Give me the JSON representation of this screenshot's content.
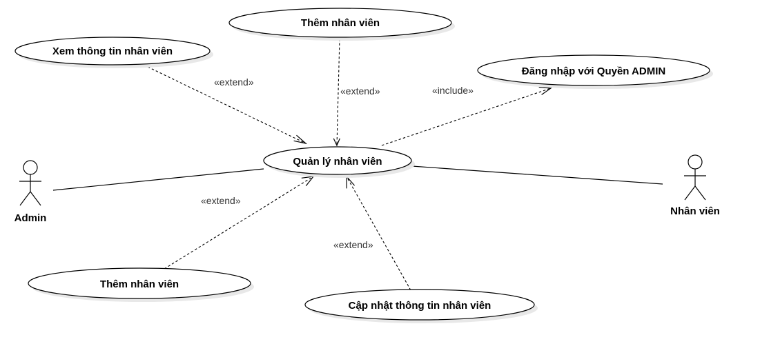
{
  "colors": {
    "stroke": "#000000",
    "ellipse_fill": "#ffffff",
    "shadow": "#e8e8e8",
    "relation_text": "#333333"
  },
  "actors": {
    "admin": {
      "label": "Admin"
    },
    "employee": {
      "label": "Nhân viên"
    }
  },
  "use_cases": {
    "manage": {
      "label": "Quản lý nhân viên"
    },
    "add_top": {
      "label": "Thêm nhân viên"
    },
    "view": {
      "label": "Xem thông tin nhân viên"
    },
    "login": {
      "label": "Đăng nhập với Quyền ADMIN"
    },
    "add_bottom": {
      "label": "Thêm nhân viên"
    },
    "update": {
      "label": "Cập nhật thông tin nhân viên"
    }
  },
  "relations": {
    "view_extend": {
      "label": "«extend»"
    },
    "add_top_extend": {
      "label": "«extend»"
    },
    "login_include": {
      "label": "«include»"
    },
    "add_bottom_extend": {
      "label": "«extend»"
    },
    "update_extend": {
      "label": "«extend»"
    }
  }
}
